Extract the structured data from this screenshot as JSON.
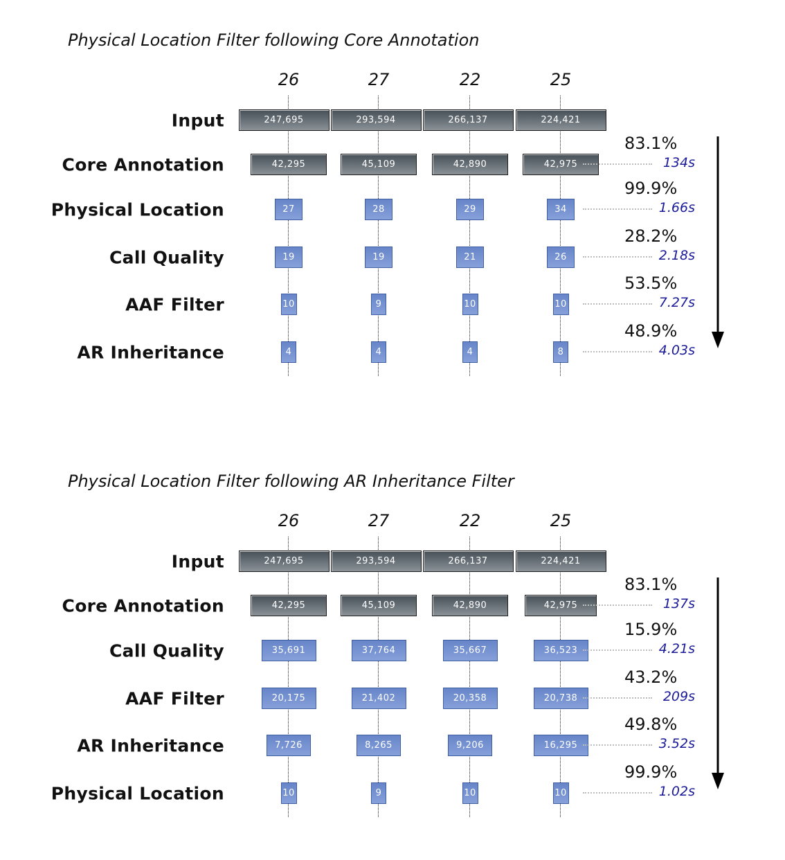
{
  "columns": [
    "26",
    "27",
    "22",
    "25"
  ],
  "panels": [
    {
      "title": "Physical Location Filter following Core Annotation",
      "rows": [
        {
          "label": "Input",
          "style": "dark",
          "values": [
            "247,695",
            "293,594",
            "266,137",
            "224,421"
          ]
        },
        {
          "label": "Core Annotation",
          "style": "dark",
          "values": [
            "42,295",
            "45,109",
            "42,890",
            "42,975"
          ],
          "percent": "83.1%",
          "time": "134s"
        },
        {
          "label": "Physical Location",
          "style": "blue",
          "values": [
            "27",
            "28",
            "29",
            "34"
          ],
          "percent": "99.9%",
          "time": "1.66s"
        },
        {
          "label": "Call Quality",
          "style": "blue",
          "values": [
            "19",
            "19",
            "21",
            "26"
          ],
          "percent": "28.2%",
          "time": "2.18s"
        },
        {
          "label": "AAF Filter",
          "style": "blue",
          "values": [
            "10",
            "9",
            "10",
            "10"
          ],
          "percent": "53.5%",
          "time": "7.27s"
        },
        {
          "label": "AR Inheritance",
          "style": "blue",
          "values": [
            "4",
            "4",
            "4",
            "8"
          ],
          "percent": "48.9%",
          "time": "4.03s"
        }
      ]
    },
    {
      "title": "Physical Location Filter following AR Inheritance Filter",
      "rows": [
        {
          "label": "Input",
          "style": "dark",
          "values": [
            "247,695",
            "293,594",
            "266,137",
            "224,421"
          ]
        },
        {
          "label": "Core Annotation",
          "style": "dark",
          "values": [
            "42,295",
            "45,109",
            "42,890",
            "42,975"
          ],
          "percent": "83.1%",
          "time": "137s"
        },
        {
          "label": "Call Quality",
          "style": "blue",
          "values": [
            "35,691",
            "37,764",
            "35,667",
            "36,523"
          ],
          "percent": "15.9%",
          "time": "4.21s"
        },
        {
          "label": "AAF Filter",
          "style": "blue",
          "values": [
            "20,175",
            "21,402",
            "20,358",
            "20,738"
          ],
          "percent": "43.2%",
          "time": "209s"
        },
        {
          "label": "AR Inheritance",
          "style": "blue",
          "values": [
            "7,726",
            "8,265",
            "9,206",
            "16,295"
          ],
          "percent": "49.8%",
          "time": "3.52s"
        },
        {
          "label": "Physical Location",
          "style": "blue",
          "values": [
            "10",
            "9",
            "10",
            "10"
          ],
          "percent": "99.9%",
          "time": "1.02s"
        }
      ]
    }
  ]
}
